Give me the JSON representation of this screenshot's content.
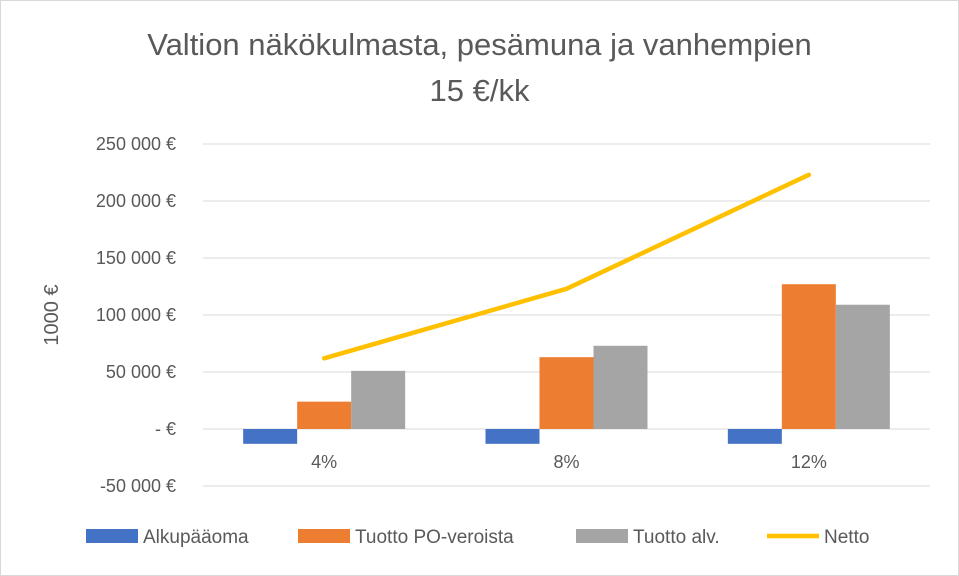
{
  "chart_data": {
    "type": "bar",
    "title_line1": "Valtion näkökulmasta, pesämuna ja vanhempien",
    "title_line2": "15 €/kk",
    "ylabel": "1000 €",
    "categories": [
      "4%",
      "8%",
      "12%"
    ],
    "ylim": [
      -50000,
      250000
    ],
    "yticks": [
      {
        "value": 250000,
        "label": "250 000 €"
      },
      {
        "value": 200000,
        "label": "200 000 €"
      },
      {
        "value": 150000,
        "label": "150 000 €"
      },
      {
        "value": 100000,
        "label": "100 000 €"
      },
      {
        "value": 50000,
        "label": "50 000 €"
      },
      {
        "value": 0,
        "label": "-   €"
      },
      {
        "value": -50000,
        "label": "-50 000 €"
      }
    ],
    "grid": true,
    "legend": "bottom",
    "series": [
      {
        "name": "Alkupääoma",
        "kind": "bar",
        "color": "#4472c4",
        "values": [
          -13000,
          -13000,
          -13000
        ]
      },
      {
        "name": "Tuotto PO-veroista",
        "kind": "bar",
        "color": "#ed7d31",
        "values": [
          24000,
          63000,
          127000
        ]
      },
      {
        "name": "Tuotto alv.",
        "kind": "bar",
        "color": "#a5a5a5",
        "values": [
          51000,
          73000,
          109000
        ]
      },
      {
        "name": "Netto",
        "kind": "line",
        "color": "#ffc000",
        "values": [
          62000,
          123000,
          223000
        ]
      }
    ]
  }
}
